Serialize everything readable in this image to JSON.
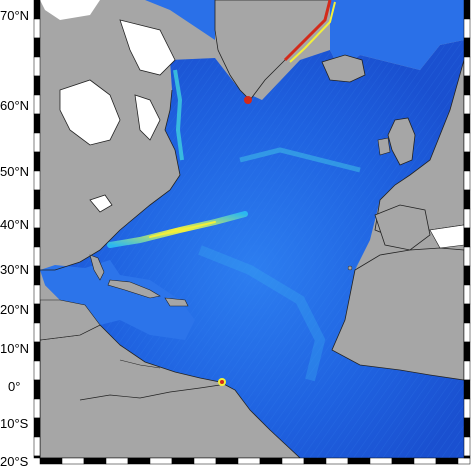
{
  "map": {
    "latitude_labels": [
      "70°N",
      "60°N",
      "50°N",
      "40°N",
      "30°N",
      "20°N",
      "10°N",
      "0°",
      "10°S",
      "20°S"
    ],
    "latitude_values": [
      70,
      60,
      50,
      40,
      30,
      20,
      10,
      0,
      -10,
      -20
    ],
    "colors": {
      "land": "#a6a6a6",
      "ice": "#ffffff",
      "ocean_low": "#1a55d8",
      "ocean_mid": "#2f8ff0",
      "ocean_high": "#3fe0d0",
      "front_yellow": "#f3f03a",
      "front_red": "#d32a1a",
      "frame_dark": "#000000",
      "frame_light": "#ffffff"
    }
  }
}
